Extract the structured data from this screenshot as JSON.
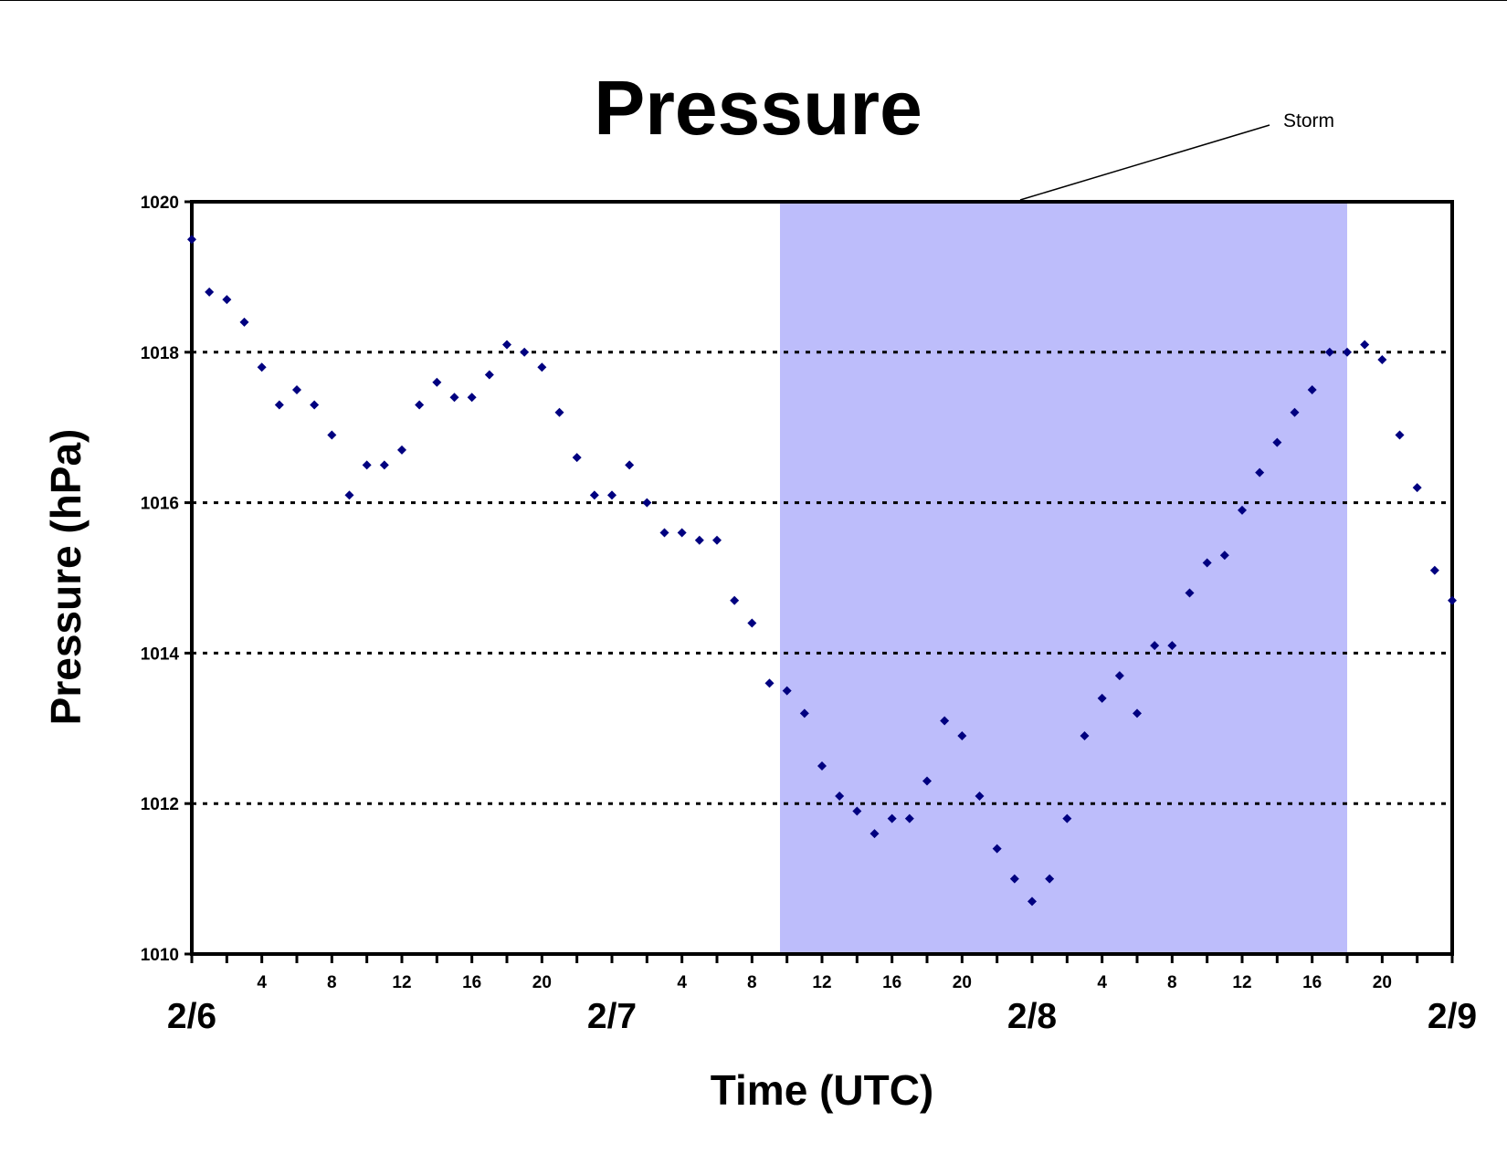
{
  "chart_data": {
    "type": "scatter",
    "title": "Pressure",
    "xlabel": "Time (UTC)",
    "ylabel": "Pressure (hPa)",
    "ylim": [
      1010,
      1020
    ],
    "yticks": [
      "1010",
      "1012",
      "1014",
      "1016",
      "1018",
      "1020"
    ],
    "gridlines": [
      1012,
      1014,
      1016,
      1018
    ],
    "grid_style": "dotted horizontal",
    "x_unit": "hours since 2/6 00 UTC",
    "xlim": [
      0,
      72
    ],
    "hour_tick_labels": [
      "4",
      "8",
      "12",
      "16",
      "20",
      "4",
      "8",
      "12",
      "16",
      "20",
      "4",
      "8",
      "12",
      "16",
      "20"
    ],
    "date_labels": [
      "2/6",
      "2/7",
      "2/8",
      "2/9"
    ],
    "storm": {
      "label": "Storm",
      "x_start": 33.6,
      "x_end": 66,
      "color": "#BDBDFB"
    },
    "marker_color": "#000080",
    "series": [
      {
        "name": "",
        "x": [
          0,
          1,
          2,
          3,
          4,
          5,
          6,
          7,
          8,
          9,
          10,
          11,
          12,
          13,
          14,
          15,
          16,
          17,
          18,
          19,
          20,
          21,
          22,
          23,
          24,
          25,
          26,
          27,
          28,
          29,
          30,
          31,
          32,
          33,
          34,
          35,
          36,
          37,
          38,
          39,
          40,
          41,
          42,
          43,
          44,
          45,
          46,
          47,
          48,
          49,
          50,
          51,
          52,
          53,
          54,
          55,
          56,
          57,
          58,
          59,
          60,
          61,
          62,
          63,
          64,
          65,
          66,
          67,
          68,
          69,
          70,
          71,
          72
        ],
        "y": [
          1019.5,
          1018.8,
          1018.7,
          1018.4,
          1017.8,
          1017.3,
          1017.5,
          1017.3,
          1016.9,
          1016.1,
          1016.5,
          1016.5,
          1016.7,
          1017.3,
          1017.6,
          1017.4,
          1017.4,
          1017.7,
          1018.1,
          1018.0,
          1017.8,
          1017.2,
          1016.6,
          1016.1,
          1016.1,
          1016.5,
          1016.0,
          1015.6,
          1015.6,
          1015.5,
          1015.5,
          1014.7,
          1014.4,
          1013.6,
          1013.5,
          1013.2,
          1012.5,
          1012.1,
          1011.9,
          1011.6,
          1011.8,
          1011.8,
          1012.3,
          1013.1,
          1012.9,
          1012.1,
          1011.4,
          1011.0,
          1010.7,
          1011.0,
          1011.8,
          1012.9,
          1013.4,
          1013.7,
          1013.2,
          1014.1,
          1014.1,
          1014.8,
          1015.2,
          1015.3,
          1015.9,
          1016.4,
          1016.8,
          1017.2,
          1017.5,
          1018.0,
          1018.0,
          1018.1,
          1017.9,
          1016.9,
          1016.2,
          1015.1,
          1014.7
        ]
      }
    ]
  }
}
